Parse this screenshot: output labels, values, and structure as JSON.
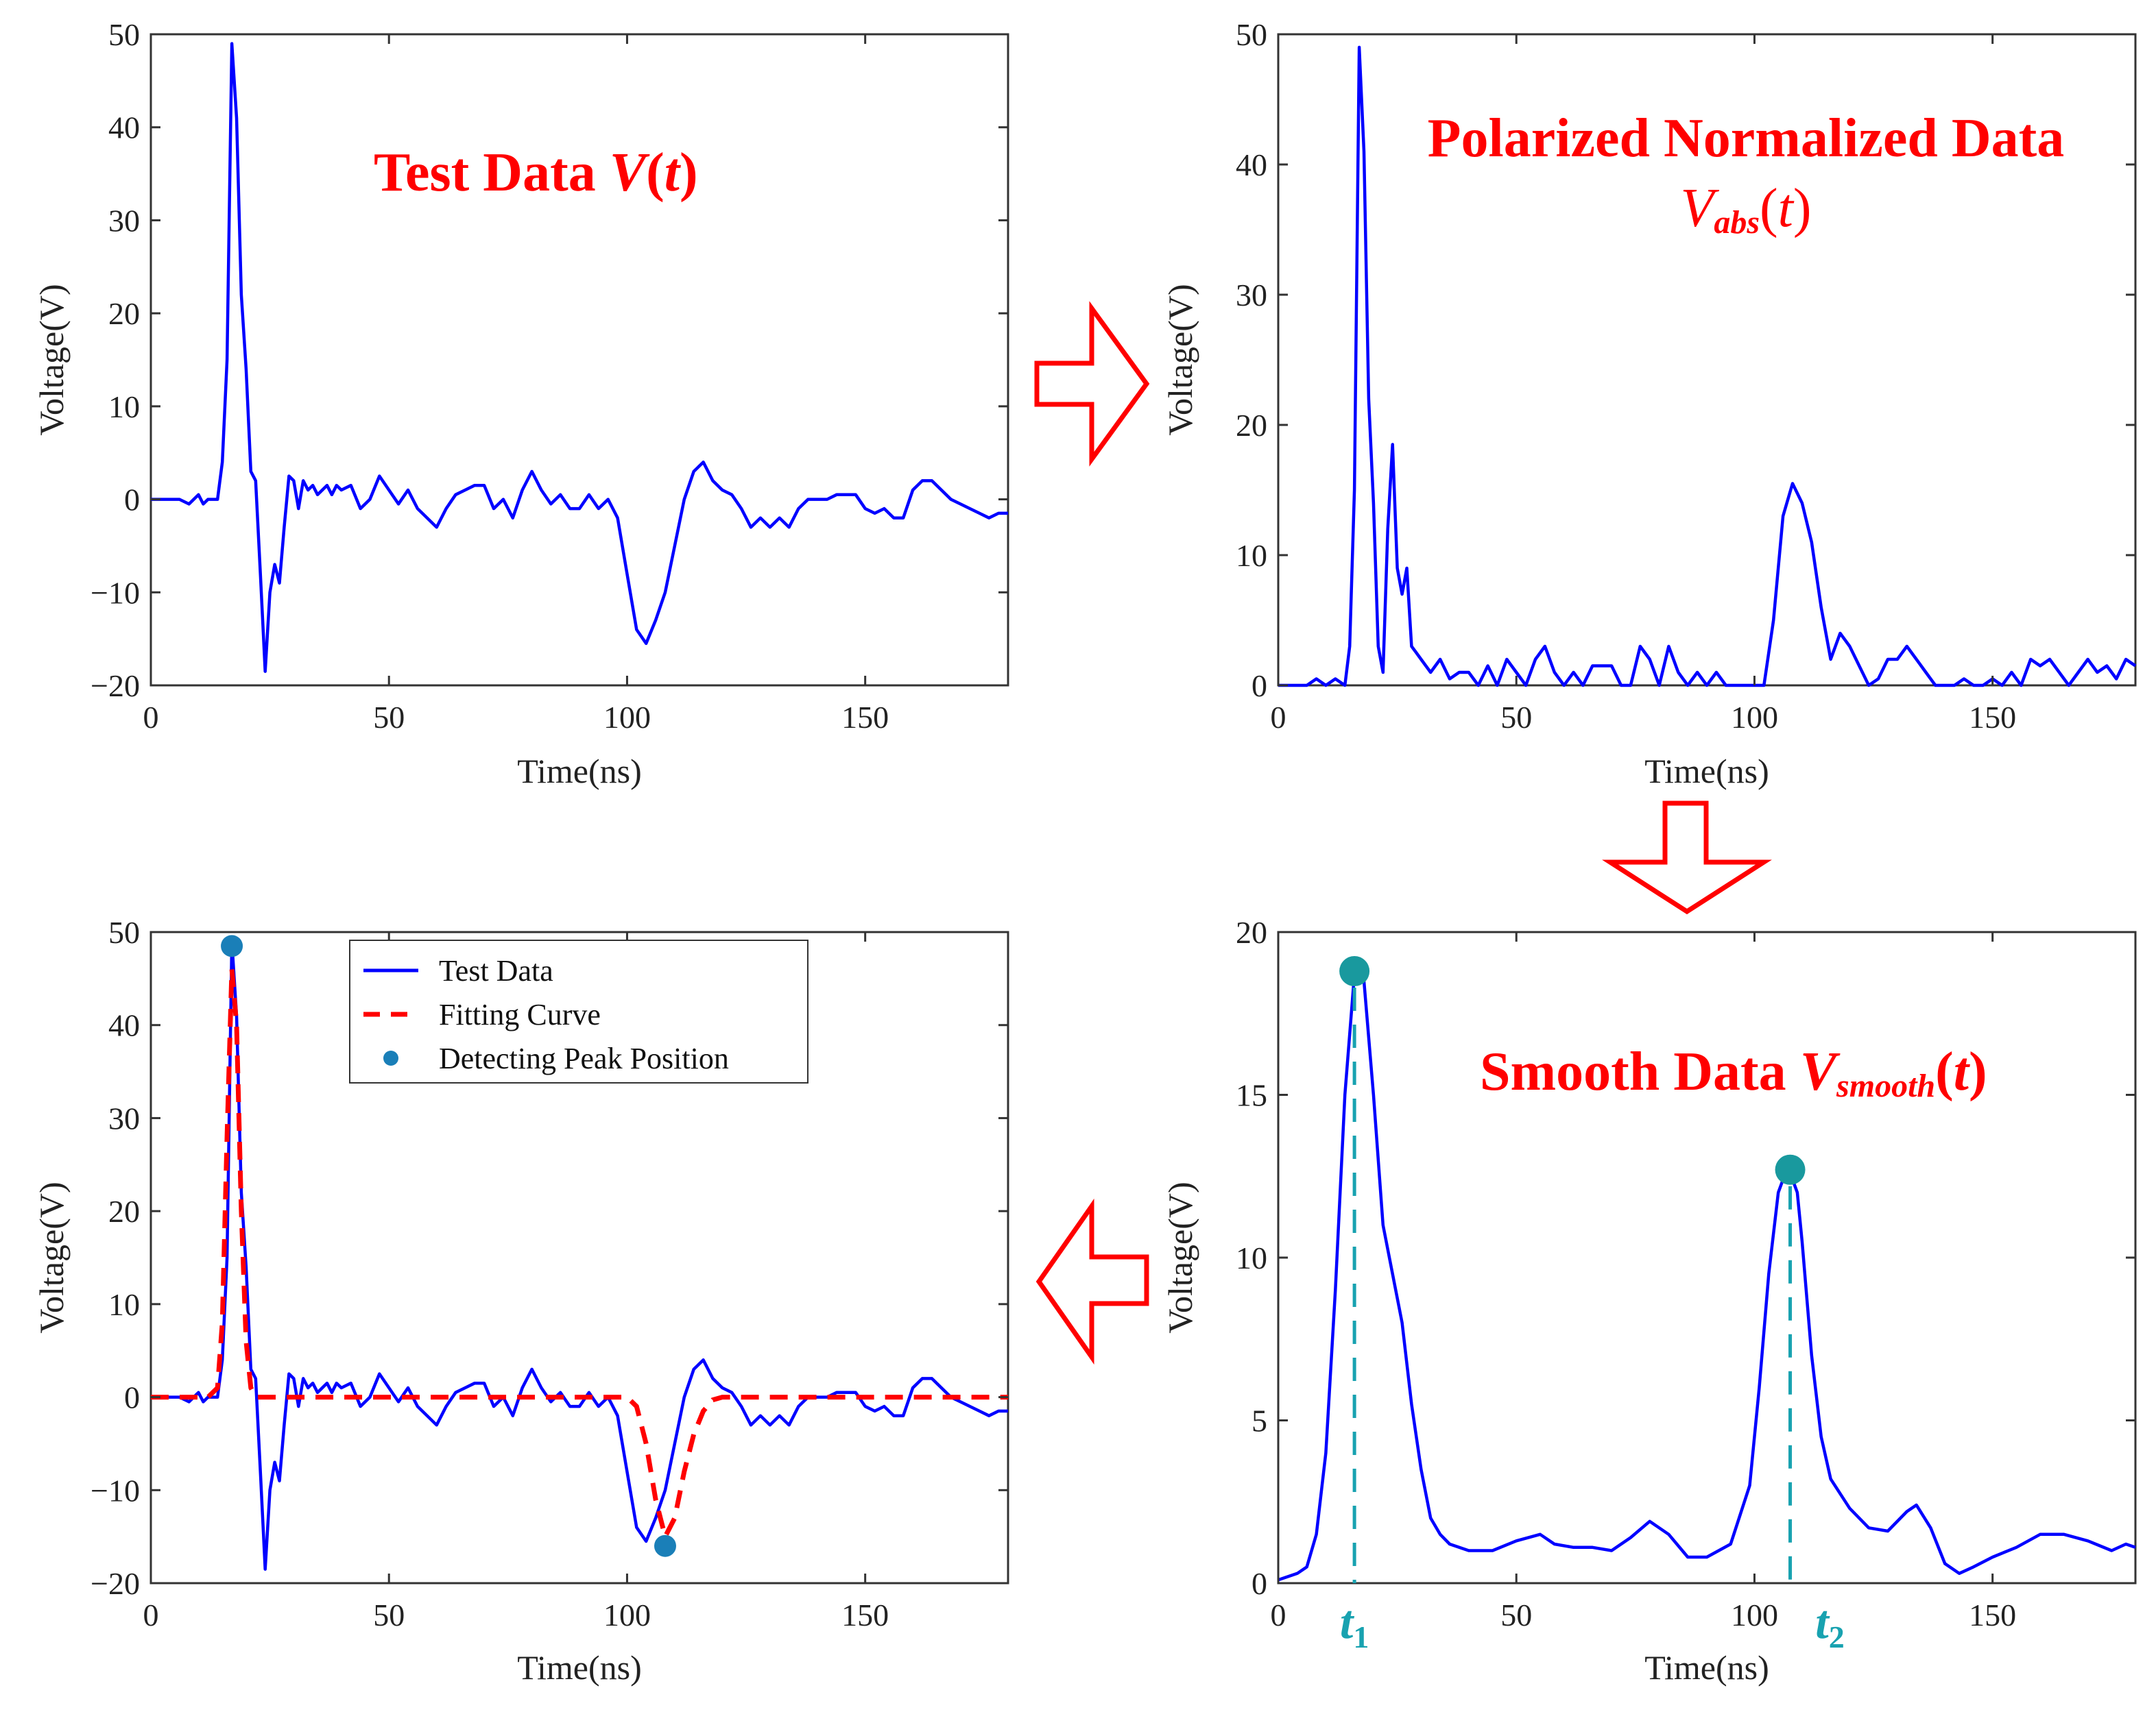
{
  "colors": {
    "series": "#0000ff",
    "fit": "#ff0000",
    "title": "#ff0000",
    "marker": "#1a7fb8",
    "marker_smooth": "#19999e",
    "t_marker": "#18a2b0",
    "arrow": "#ff0000"
  },
  "chart_data": [
    {
      "id": "test-data",
      "type": "line",
      "title": {
        "main": "Test Data ",
        "var": "V",
        "open": "(",
        "arg": "t",
        "close": ")"
      },
      "xlabel": "Time(ns)",
      "ylabel": "Voltage(V)",
      "xlim": [
        0,
        180
      ],
      "ylim": [
        -20,
        50
      ],
      "xticks": [
        0,
        50,
        100,
        150
      ],
      "yticks": [
        -20,
        -10,
        0,
        10,
        20,
        30,
        40,
        50
      ],
      "series": [
        {
          "name": "V(t)",
          "x": [
            0,
            2,
            4,
            6,
            8,
            9,
            10,
            11,
            12,
            13,
            14,
            15,
            16,
            17,
            18,
            19,
            20,
            21,
            22,
            23,
            24,
            25,
            26,
            27,
            28,
            29,
            30,
            31,
            32,
            33,
            34,
            35,
            36,
            37,
            38,
            39,
            40,
            42,
            44,
            46,
            48,
            50,
            52,
            54,
            56,
            58,
            60,
            62,
            64,
            66,
            68,
            70,
            72,
            74,
            76,
            78,
            80,
            82,
            84,
            86,
            88,
            90,
            92,
            94,
            96,
            98,
            100,
            102,
            104,
            106,
            108,
            110,
            112,
            114,
            116,
            118,
            120,
            122,
            124,
            126,
            128,
            130,
            132,
            134,
            136,
            138,
            140,
            142,
            144,
            146,
            148,
            150,
            152,
            154,
            156,
            158,
            160,
            162,
            164,
            166,
            168,
            170,
            172,
            174,
            176,
            178,
            180
          ],
          "values": [
            0,
            0,
            0,
            0,
            -0.5,
            0,
            0.5,
            -0.5,
            0,
            0,
            0,
            4,
            15,
            49,
            41,
            22,
            14,
            3,
            2,
            -8,
            -18.5,
            -10,
            -7,
            -9,
            -3,
            2.5,
            2,
            -1,
            2,
            1,
            1.5,
            0.5,
            1,
            1.5,
            0.5,
            1.5,
            1,
            1.5,
            -1,
            0,
            2.5,
            1,
            -0.5,
            1,
            -1,
            -2,
            -3,
            -1,
            0.5,
            1,
            1.5,
            1.5,
            -1,
            0,
            -2,
            1,
            3,
            1,
            -0.5,
            0.5,
            -1,
            -1,
            0.5,
            -1,
            0,
            -2,
            -8,
            -14,
            -15.5,
            -13,
            -10,
            -5,
            0,
            3,
            4,
            2,
            1,
            0.5,
            -1,
            -3,
            -2,
            -3,
            -2,
            -3,
            -1,
            0,
            0,
            0,
            0.5,
            0.5,
            0.5,
            -1,
            -1.5,
            -1,
            -2,
            -2,
            1,
            2,
            2,
            1,
            0,
            -0.5,
            -1,
            -1.5,
            -2,
            -1.5,
            -1.5
          ]
        }
      ]
    },
    {
      "id": "polarized",
      "type": "line",
      "title": {
        "line1": "Polarized Normalized Data",
        "var": "V",
        "sub": "abs",
        "open": "(",
        "arg": "t",
        "close": ")"
      },
      "xlabel": "Time(ns)",
      "ylabel": "Voltage(V)",
      "xlim": [
        0,
        180
      ],
      "ylim": [
        0,
        50
      ],
      "xticks": [
        0,
        50,
        100,
        150
      ],
      "yticks": [
        0,
        10,
        20,
        30,
        40,
        50
      ],
      "series": [
        {
          "name": "Vabs(t)",
          "x": [
            0,
            2,
            4,
            6,
            8,
            10,
            12,
            14,
            15,
            16,
            17,
            18,
            19,
            20,
            21,
            22,
            23,
            24,
            25,
            26,
            27,
            28,
            29,
            30,
            32,
            34,
            36,
            38,
            40,
            42,
            44,
            46,
            48,
            50,
            52,
            54,
            56,
            58,
            60,
            62,
            64,
            66,
            68,
            70,
            72,
            74,
            76,
            78,
            80,
            82,
            84,
            86,
            88,
            90,
            92,
            94,
            96,
            98,
            100,
            102,
            104,
            106,
            108,
            110,
            112,
            114,
            116,
            118,
            120,
            122,
            124,
            126,
            128,
            130,
            132,
            134,
            136,
            138,
            140,
            142,
            144,
            146,
            148,
            150,
            152,
            154,
            156,
            158,
            160,
            162,
            164,
            166,
            168,
            170,
            172,
            174,
            176,
            178,
            180
          ],
          "values": [
            0,
            0,
            0,
            0,
            0.5,
            0,
            0.5,
            0,
            3,
            15,
            49,
            41,
            22,
            14,
            3,
            1,
            12,
            18.5,
            9,
            7,
            9,
            3,
            2.5,
            2,
            1,
            2,
            0.5,
            1,
            1,
            0,
            1.5,
            0,
            2,
            1,
            0,
            2,
            3,
            1,
            0,
            1,
            0,
            1.5,
            1.5,
            1.5,
            0,
            0,
            3,
            2,
            0,
            3,
            1,
            0,
            1,
            0,
            1,
            0,
            0,
            0,
            0,
            0,
            5,
            13,
            15.5,
            14,
            11,
            6,
            2,
            4,
            3,
            1.5,
            0,
            0.5,
            2,
            2,
            3,
            2,
            1,
            0,
            0,
            0,
            0.5,
            0,
            0,
            0.5,
            0,
            1,
            0,
            2,
            1.5,
            2,
            1,
            0,
            1,
            2,
            1,
            1.5,
            0.5,
            2,
            1.5
          ]
        }
      ]
    },
    {
      "id": "fit",
      "type": "line",
      "xlabel": "Time(ns)",
      "ylabel": "Voltage(V)",
      "xlim": [
        0,
        180
      ],
      "ylim": [
        -20,
        50
      ],
      "xticks": [
        0,
        50,
        100,
        150
      ],
      "yticks": [
        -20,
        -10,
        0,
        10,
        20,
        30,
        40,
        50
      ],
      "legend": {
        "position": "top-center",
        "entries": [
          "Test Data",
          "Fitting Curve",
          "Detecting Peak Position"
        ]
      },
      "series": [
        {
          "name": "Test Data",
          "ref": "test-data"
        },
        {
          "name": "Fitting Curve",
          "style": "dashed",
          "x": [
            0,
            12,
            14,
            15,
            16,
            17,
            18,
            19,
            20,
            21,
            22,
            100,
            102,
            104,
            106,
            108,
            110,
            112,
            114,
            116,
            118,
            120,
            180
          ],
          "values": [
            0,
            0,
            1,
            8,
            28,
            46,
            40,
            20,
            6,
            1,
            0,
            0,
            -1,
            -5,
            -11,
            -15,
            -13,
            -8,
            -4,
            -1.5,
            -0.3,
            0,
            0
          ]
        },
        {
          "name": "Detecting Peak Position",
          "style": "marker",
          "x": [
            17,
            108
          ],
          "values": [
            48.5,
            -16
          ]
        }
      ]
    },
    {
      "id": "smooth",
      "type": "line",
      "title": {
        "main": "Smooth Data ",
        "var": "V",
        "sub": "smooth",
        "open": "(",
        "arg": "t",
        "close": ")"
      },
      "xlabel": "Time(ns)",
      "ylabel": "Voltage(V)",
      "xlim": [
        0,
        180
      ],
      "ylim": [
        0,
        20
      ],
      "xticks": [
        0,
        50,
        100,
        150
      ],
      "yticks": [
        0,
        5,
        10,
        15,
        20
      ],
      "series": [
        {
          "name": "Vsmooth(t)",
          "x": [
            0,
            4,
            6,
            8,
            10,
            12,
            14,
            16,
            17,
            18,
            20,
            22,
            24,
            26,
            28,
            30,
            32,
            34,
            36,
            38,
            40,
            45,
            50,
            55,
            58,
            62,
            66,
            70,
            74,
            78,
            82,
            86,
            90,
            95,
            99,
            101,
            103,
            105,
            107,
            109,
            110,
            112,
            114,
            116,
            120,
            124,
            128,
            132,
            134,
            137,
            140,
            143,
            146,
            150,
            155,
            160,
            165,
            170,
            175,
            178,
            180
          ],
          "values": [
            0.1,
            0.3,
            0.5,
            1.5,
            4,
            9,
            15,
            18.7,
            18.9,
            18.5,
            15,
            11,
            9.5,
            8,
            5.5,
            3.5,
            2,
            1.5,
            1.2,
            1.1,
            1.0,
            1.0,
            1.3,
            1.5,
            1.2,
            1.1,
            1.1,
            1.0,
            1.4,
            1.9,
            1.5,
            0.8,
            0.8,
            1.2,
            3,
            6,
            9.5,
            12,
            12.8,
            12,
            10.5,
            7,
            4.5,
            3.2,
            2.3,
            1.7,
            1.6,
            2.2,
            2.4,
            1.7,
            0.6,
            0.3,
            0.5,
            0.8,
            1.1,
            1.5,
            1.5,
            1.3,
            1.0,
            1.2,
            1.1
          ]
        },
        {
          "name": "Peaks",
          "style": "marker",
          "x": [
            16,
            107.5
          ],
          "values": [
            18.8,
            12.7
          ]
        }
      ],
      "annotations": [
        {
          "main": "t",
          "sub": "1",
          "x": 16
        },
        {
          "main": "t",
          "sub": "2",
          "x": 107.5
        }
      ]
    }
  ]
}
